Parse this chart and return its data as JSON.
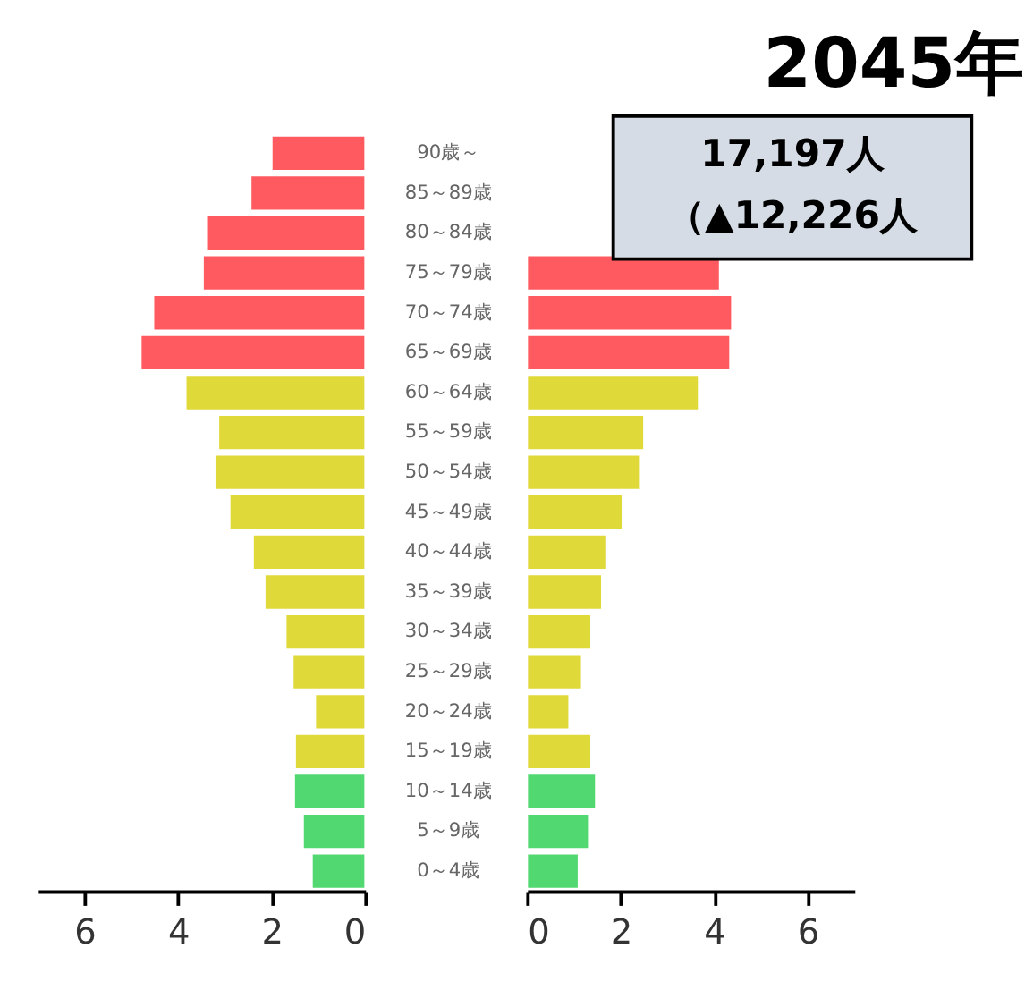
{
  "chart_data": [
    {
      "type": "bar",
      "orientation": "horizontal",
      "categories": [
        "90歳～",
        "85～89歳",
        "80～84歳",
        "75～79歳",
        "70～74歳",
        "65～69歳",
        "60～64歳",
        "55～59歳",
        "50～54歳",
        "45～49歳",
        "40～44歳",
        "35～39歳",
        "30～34歳",
        "25～29歳",
        "20～24歳",
        "15～19歳",
        "10～14歳",
        "5～9歳",
        "0～4歳"
      ],
      "values": [
        2.0,
        2.45,
        3.4,
        3.47,
        4.53,
        4.8,
        3.84,
        3.14,
        3.22,
        2.9,
        2.4,
        2.15,
        1.7,
        1.55,
        1.07,
        1.5,
        1.52,
        1.33,
        1.14
      ],
      "colors": [
        "#ff5a5f",
        "#ff5a5f",
        "#ff5a5f",
        "#ff5a5f",
        "#ff5a5f",
        "#ff5a5f",
        "#e0d93a",
        "#e0d93a",
        "#e0d93a",
        "#e0d93a",
        "#e0d93a",
        "#e0d93a",
        "#e0d93a",
        "#e0d93a",
        "#e0d93a",
        "#e0d93a",
        "#52d870",
        "#52d870",
        "#52d870"
      ],
      "xlim": [
        7,
        0
      ],
      "xticks": [
        6,
        4,
        2,
        0
      ],
      "grid": false
    },
    {
      "type": "bar",
      "orientation": "horizontal",
      "title": "2045年",
      "annotations": [
        "17,197人",
        "（▲12,226人"
      ],
      "tick_labels": "x",
      "categories": [
        null,
        null,
        null,
        null,
        null,
        null,
        null,
        null,
        null,
        null,
        null,
        null,
        null,
        null,
        null,
        null,
        null,
        null,
        null
      ],
      "values": [
        null,
        null,
        null,
        4.12,
        4.38,
        4.34,
        3.67,
        2.5,
        2.41,
        2.04,
        1.69,
        1.6,
        1.37,
        1.17,
        0.9,
        1.37,
        1.47,
        1.32,
        1.1
      ],
      "colors": [
        "#ff5a5f",
        "#ff5a5f",
        "#ff5a5f",
        "#ff5a5f",
        "#ff5a5f",
        "#ff5a5f",
        "#e0d93a",
        "#e0d93a",
        "#e0d93a",
        "#e0d93a",
        "#e0d93a",
        "#e0d93a",
        "#e0d93a",
        "#e0d93a",
        "#e0d93a",
        "#e0d93a",
        "#52d870",
        "#52d870",
        "#52d870"
      ],
      "xlim": [
        0,
        7
      ],
      "xticks": [
        0,
        2,
        4,
        6
      ],
      "grid": false
    }
  ]
}
